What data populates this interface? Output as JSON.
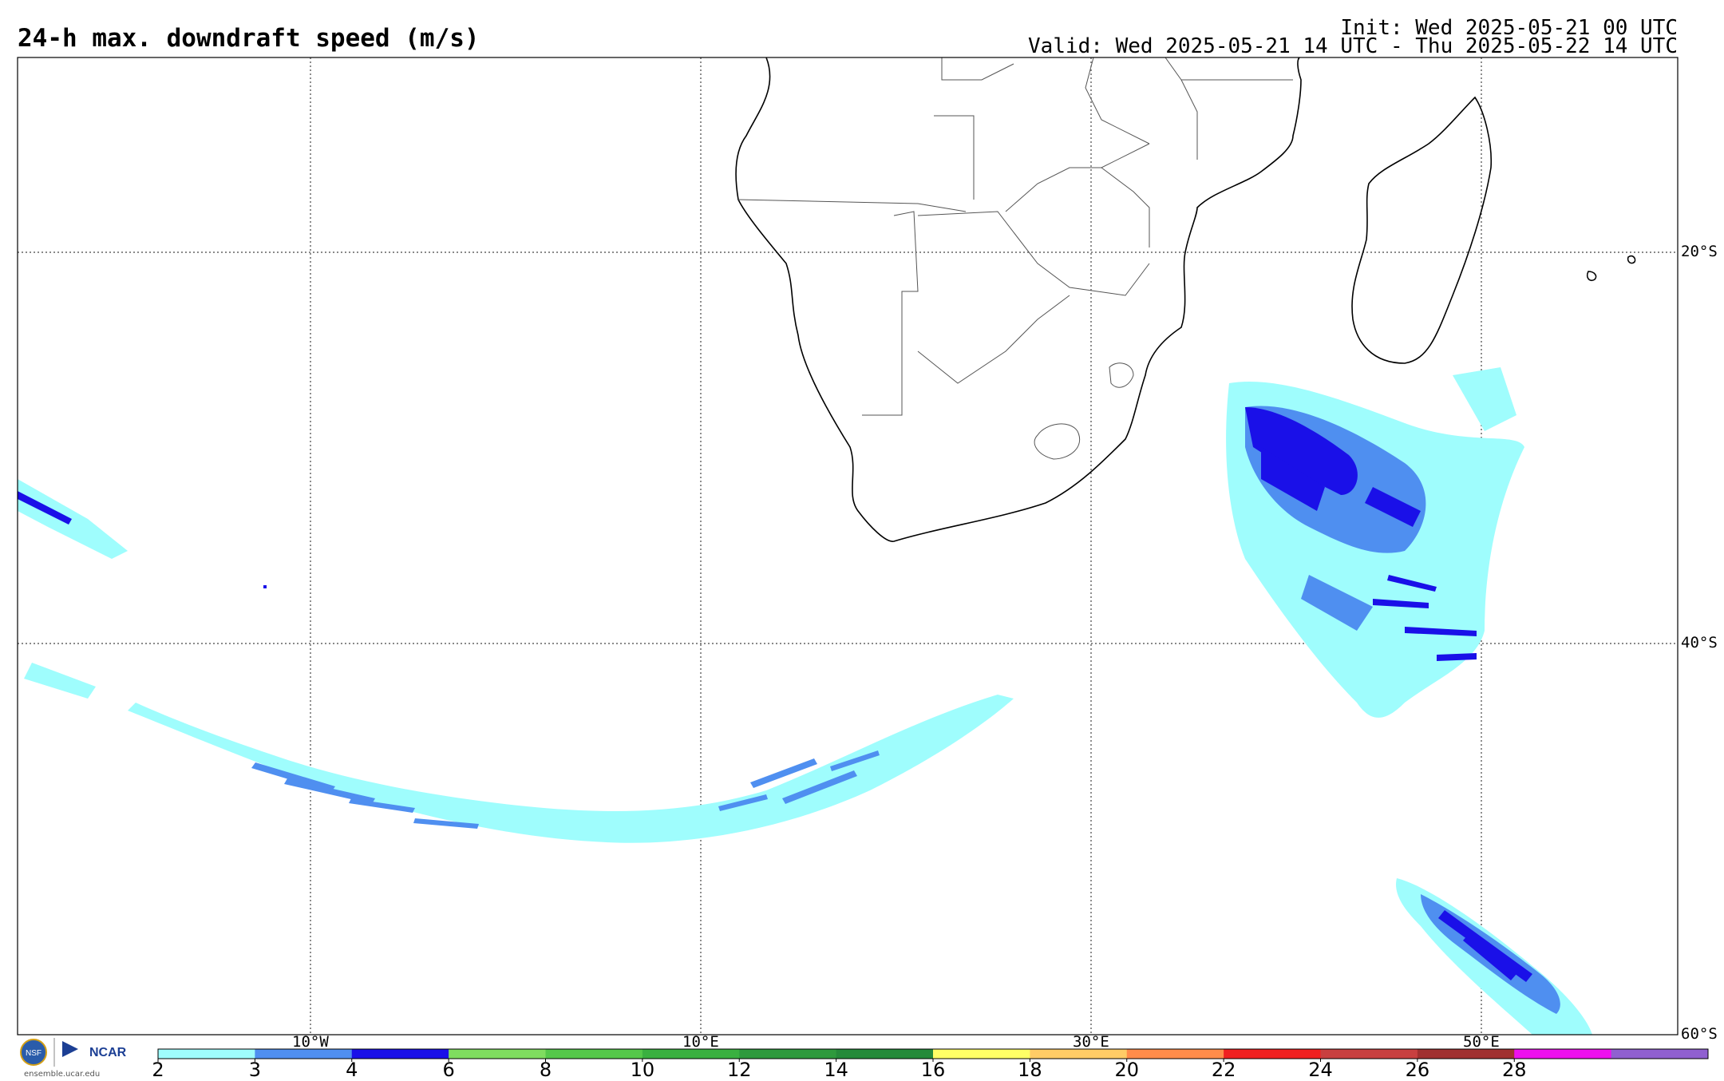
{
  "header": {
    "title": "24-h max. downdraft speed (m/s)",
    "init": "Init: Wed 2025-05-21 00 UTC",
    "valid": "Valid: Wed 2025-05-21 14 UTC - Thu 2025-05-22 14 UTC"
  },
  "axes": {
    "lat_labels": [
      "20°S",
      "40°S",
      "60°S"
    ],
    "lon_labels": [
      "10°W",
      "10°E",
      "30°E",
      "50°E"
    ]
  },
  "colorbar": {
    "ticks": [
      "2",
      "3",
      "4",
      "6",
      "8",
      "10",
      "12",
      "14",
      "16",
      "18",
      "20",
      "22",
      "24",
      "26",
      "28"
    ],
    "colors": [
      "#9ffdfd",
      "#4f8ff0",
      "#1a10e8",
      "#7fdd5f",
      "#55c84a",
      "#3ab040",
      "#2e9a3d",
      "#258a3a",
      "#ffff66",
      "#ffcc66",
      "#ff8c4a",
      "#f02020",
      "#c84040",
      "#a03030",
      "#ee10ee",
      "#9060d0"
    ]
  },
  "credits": {
    "nsf": "NSF",
    "ncar": "NCAR",
    "site": "ensemble.ucar.edu"
  }
}
